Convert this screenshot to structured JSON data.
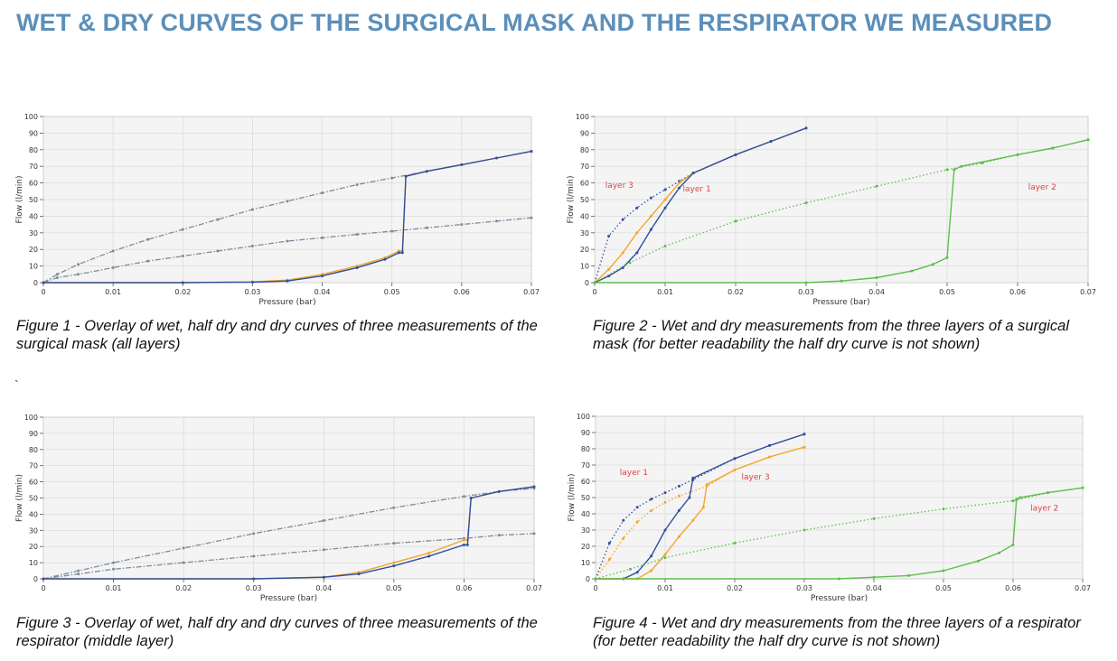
{
  "page": {
    "title": "WET & DRY CURVES OF THE SURGICAL MASK AND THE RESPIRATOR WE MEASURED",
    "stray_mark": "`"
  },
  "colors": {
    "title": "#5b8fb9",
    "blue": "#2f4f9f",
    "orange": "#f4a62a",
    "green": "#5cbf4c",
    "gray_series": "#7c8c9c",
    "annotation": "#e04040",
    "plot_bg": "#f4f4f4",
    "grid": "#d9d9d9"
  },
  "captions": [
    {
      "num": "Figure 1",
      "text": " - Overlay of wet, half dry and dry curves of three measurements of the surgical mask (all layers)"
    },
    {
      "num": "Figure 2",
      "text": " - Wet and dry measurements from the three layers of a surgical mask (for better readability the half dry curve is not shown)"
    },
    {
      "num": "Figure 3",
      "text": " - Overlay of wet, half dry and dry curves of three measurements of the respirator (middle layer)"
    },
    {
      "num": "Figure 4",
      "text": " - Wet and dry measurements from the three layers of a respirator (for better readability the half dry curve is not shown)"
    }
  ],
  "chart_data": [
    {
      "type": "line",
      "xlabel": "Pressure (bar)",
      "ylabel": "Flow (l/min)",
      "xlim": [
        0,
        0.07
      ],
      "ylim": [
        0,
        100
      ],
      "xticks": [
        "0",
        "0.01",
        "0.02",
        "0.03",
        "0.04",
        "0.05",
        "0.06",
        "0.07"
      ],
      "yticks": [
        "0",
        "10",
        "20",
        "30",
        "40",
        "50",
        "60",
        "70",
        "80",
        "90",
        "100"
      ],
      "grid": true,
      "series": [
        {
          "style": "dashdot",
          "color": "gray_series",
          "x": [
            0,
            0.002,
            0.005,
            0.01,
            0.015,
            0.02,
            0.025,
            0.03,
            0.035,
            0.04,
            0.045,
            0.05,
            0.055,
            0.06,
            0.065,
            0.07
          ],
          "y": [
            0,
            5,
            11,
            19,
            26,
            32,
            38,
            44,
            49,
            54,
            59,
            63,
            67,
            71,
            75,
            79
          ]
        },
        {
          "style": "dashdot",
          "color": "gray_series",
          "x": [
            0,
            0.002,
            0.005,
            0.01,
            0.015,
            0.02,
            0.025,
            0.03,
            0.035,
            0.04,
            0.045,
            0.05,
            0.055,
            0.06,
            0.065,
            0.07
          ],
          "y": [
            0,
            3,
            5,
            9,
            13,
            16,
            19,
            22,
            25,
            27,
            29,
            31,
            33,
            35,
            37,
            39
          ]
        },
        {
          "style": "solid",
          "color": "orange",
          "x": [
            0,
            0.02,
            0.03,
            0.035,
            0.04,
            0.045,
            0.049,
            0.051,
            0.0515,
            0.052,
            0.055,
            0.06,
            0.065,
            0.07
          ],
          "y": [
            0,
            0,
            0.5,
            1.5,
            5,
            10,
            15,
            19,
            19,
            64,
            67,
            71,
            75,
            79
          ]
        },
        {
          "style": "solid",
          "color": "blue",
          "x": [
            0,
            0.02,
            0.03,
            0.035,
            0.04,
            0.045,
            0.049,
            0.051,
            0.0515,
            0.052,
            0.055,
            0.06,
            0.065,
            0.07
          ],
          "y": [
            0,
            0,
            0.3,
            1,
            4,
            9,
            14,
            18,
            18,
            64,
            67,
            71,
            75,
            79
          ]
        }
      ]
    },
    {
      "type": "line",
      "xlabel": "Pressure (bar)",
      "ylabel": "Flow (l/min)",
      "xlim": [
        0,
        0.07
      ],
      "ylim": [
        0,
        100
      ],
      "xticks": [
        "0",
        "0.01",
        "0.02",
        "0.03",
        "0.04",
        "0.05",
        "0.06",
        "0.07"
      ],
      "yticks": [
        "0",
        "10",
        "20",
        "30",
        "40",
        "50",
        "60",
        "70",
        "80",
        "90",
        "100"
      ],
      "grid": true,
      "series": [
        {
          "style": "dotted",
          "color": "blue",
          "x": [
            0,
            0.002,
            0.004,
            0.006,
            0.008,
            0.01,
            0.012,
            0.014,
            0.02,
            0.025,
            0.03
          ],
          "y": [
            0,
            28,
            38,
            45,
            51,
            56,
            61,
            66,
            77,
            85,
            93
          ]
        },
        {
          "style": "solid",
          "color": "orange",
          "x": [
            0,
            0.002,
            0.004,
            0.006,
            0.008,
            0.01,
            0.012,
            0.014,
            0.02,
            0.025,
            0.03
          ],
          "y": [
            0,
            8,
            18,
            30,
            40,
            50,
            60,
            66,
            77,
            85,
            93
          ]
        },
        {
          "style": "solid",
          "color": "blue",
          "x": [
            0,
            0.002,
            0.004,
            0.006,
            0.008,
            0.01,
            0.012,
            0.014,
            0.02,
            0.025,
            0.03
          ],
          "y": [
            0,
            4,
            9,
            18,
            32,
            45,
            57,
            66,
            77,
            85,
            93
          ]
        },
        {
          "style": "dotted",
          "color": "green",
          "x": [
            0,
            0.005,
            0.01,
            0.02,
            0.03,
            0.04,
            0.05,
            0.055,
            0.06,
            0.065,
            0.07
          ],
          "y": [
            0,
            12,
            22,
            37,
            48,
            58,
            68,
            72,
            77,
            81,
            86
          ]
        },
        {
          "style": "solid",
          "color": "green",
          "x": [
            0,
            0.03,
            0.035,
            0.04,
            0.045,
            0.048,
            0.05,
            0.051,
            0.052,
            0.06,
            0.065,
            0.07
          ],
          "y": [
            0,
            0,
            1,
            3,
            7,
            11,
            15,
            68,
            70,
            77,
            81,
            86
          ]
        }
      ],
      "annotations": [
        {
          "text": "layer 3",
          "x": 0.0035,
          "y": 57
        },
        {
          "text": "layer 1",
          "x": 0.0145,
          "y": 55
        },
        {
          "text": "layer 2",
          "x": 0.0635,
          "y": 56
        }
      ]
    },
    {
      "type": "line",
      "xlabel": "Pressure (bar)",
      "ylabel": "Flow (l/min)",
      "xlim": [
        0,
        0.07
      ],
      "ylim": [
        0,
        100
      ],
      "xticks": [
        "0",
        "0.01",
        "0.02",
        "0.03",
        "0.04",
        "0.05",
        "0.06",
        "0.07"
      ],
      "yticks": [
        "0",
        "10",
        "20",
        "30",
        "40",
        "50",
        "60",
        "70",
        "80",
        "90",
        "100"
      ],
      "grid": true,
      "series": [
        {
          "style": "dashdot",
          "color": "gray_series",
          "x": [
            0,
            0.005,
            0.01,
            0.02,
            0.03,
            0.04,
            0.05,
            0.06,
            0.065,
            0.07
          ],
          "y": [
            0,
            5,
            10,
            19,
            28,
            36,
            44,
            51,
            54,
            56
          ]
        },
        {
          "style": "dashdot",
          "color": "gray_series",
          "x": [
            0,
            0.005,
            0.01,
            0.02,
            0.03,
            0.04,
            0.05,
            0.06,
            0.065,
            0.07
          ],
          "y": [
            0,
            3,
            6,
            10,
            14,
            18,
            22,
            25,
            27,
            28
          ]
        },
        {
          "style": "solid",
          "color": "orange",
          "x": [
            0,
            0.03,
            0.04,
            0.045,
            0.05,
            0.055,
            0.06,
            0.0605,
            0.061,
            0.065,
            0.07
          ],
          "y": [
            0,
            0,
            1,
            4,
            10,
            16,
            24,
            24,
            50,
            54,
            57
          ]
        },
        {
          "style": "solid",
          "color": "blue",
          "x": [
            0,
            0.03,
            0.04,
            0.045,
            0.05,
            0.055,
            0.06,
            0.0605,
            0.061,
            0.065,
            0.07
          ],
          "y": [
            0,
            0,
            1,
            3,
            8,
            14,
            21,
            21,
            50,
            54,
            57
          ]
        }
      ]
    },
    {
      "type": "line",
      "xlabel": "Pressure (bar)",
      "ylabel": "Flow (l/min)",
      "xlim": [
        0,
        0.07
      ],
      "ylim": [
        0,
        100
      ],
      "xticks": [
        "0",
        "0.01",
        "0.02",
        "0.03",
        "0.04",
        "0.05",
        "0.06",
        "0.07"
      ],
      "yticks": [
        "0",
        "10",
        "20",
        "30",
        "40",
        "50",
        "60",
        "70",
        "80",
        "90",
        "100"
      ],
      "grid": true,
      "series": [
        {
          "style": "dotted",
          "color": "blue",
          "x": [
            0,
            0.002,
            0.004,
            0.006,
            0.008,
            0.01,
            0.012,
            0.014,
            0.02,
            0.025,
            0.03
          ],
          "y": [
            0,
            22,
            36,
            44,
            49,
            53,
            57,
            61,
            74,
            82,
            89
          ]
        },
        {
          "style": "dotted",
          "color": "orange",
          "x": [
            0,
            0.002,
            0.004,
            0.006,
            0.008,
            0.01,
            0.012,
            0.016,
            0.02,
            0.025,
            0.03
          ],
          "y": [
            0,
            12,
            25,
            35,
            42,
            47,
            51,
            57,
            67,
            75,
            81
          ]
        },
        {
          "style": "solid",
          "color": "blue",
          "x": [
            0,
            0.004,
            0.006,
            0.008,
            0.01,
            0.012,
            0.0135,
            0.014,
            0.02,
            0.025,
            0.03
          ],
          "y": [
            0,
            0,
            4,
            14,
            30,
            42,
            50,
            62,
            74,
            82,
            89
          ]
        },
        {
          "style": "solid",
          "color": "orange",
          "x": [
            0,
            0.006,
            0.008,
            0.01,
            0.012,
            0.014,
            0.0155,
            0.016,
            0.02,
            0.025,
            0.03
          ],
          "y": [
            0,
            0,
            5,
            15,
            26,
            36,
            44,
            58,
            67,
            75,
            81
          ]
        },
        {
          "style": "dotted",
          "color": "green",
          "x": [
            0,
            0.005,
            0.01,
            0.02,
            0.03,
            0.04,
            0.05,
            0.06,
            0.065,
            0.07
          ],
          "y": [
            0,
            6,
            13,
            22,
            30,
            37,
            43,
            48,
            53,
            56
          ]
        },
        {
          "style": "solid",
          "color": "green",
          "x": [
            0,
            0.035,
            0.04,
            0.045,
            0.05,
            0.055,
            0.058,
            0.06,
            0.0605,
            0.061,
            0.065,
            0.07
          ],
          "y": [
            0,
            0,
            1,
            2,
            5,
            11,
            16,
            21,
            49,
            50,
            53,
            56
          ]
        }
      ],
      "annotations": [
        {
          "text": "layer 1",
          "x": 0.0055,
          "y": 64
        },
        {
          "text": "layer 3",
          "x": 0.023,
          "y": 61
        },
        {
          "text": "layer 2",
          "x": 0.0645,
          "y": 42
        }
      ]
    }
  ]
}
